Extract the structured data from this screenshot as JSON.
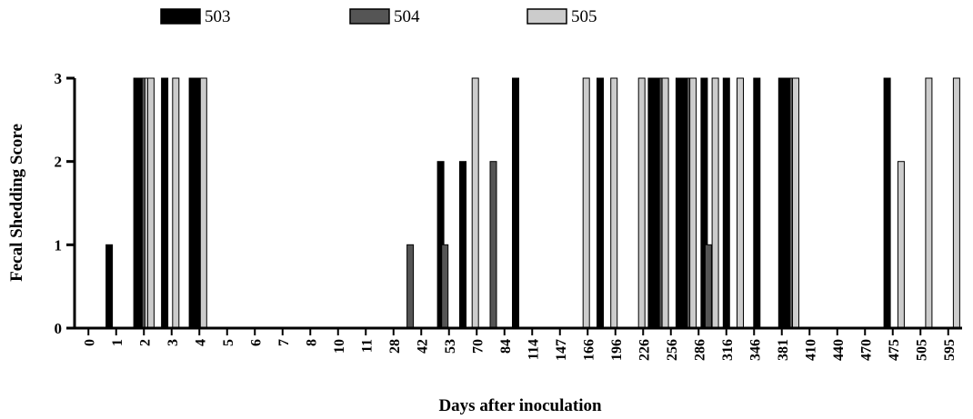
{
  "chart_data": {
    "type": "bar",
    "xlabel": "Days after inoculation",
    "ylabel": "Fecal Shedding Score",
    "ylim": [
      0,
      3
    ],
    "yticks": [
      "0",
      "1",
      "2",
      "3"
    ],
    "categories": [
      "0",
      "1",
      "2",
      "3",
      "4",
      "5",
      "6",
      "7",
      "8",
      "10",
      "11",
      "28",
      "42",
      "53",
      "70",
      "84",
      "114",
      "147",
      "166",
      "196",
      "226",
      "256",
      "286",
      "316",
      "346",
      "381",
      "410",
      "440",
      "470",
      "475",
      "505",
      "595"
    ],
    "legend_position": "top",
    "grid": false,
    "series": [
      {
        "name": "503",
        "color": "#000000",
        "bars": [
          {
            "x": 0.75,
            "v": 1
          },
          {
            "x": 1.75,
            "v": 3
          },
          {
            "x": 1.85,
            "v": 3
          },
          {
            "x": 1.95,
            "v": 3
          },
          {
            "x": 2.75,
            "v": 3
          },
          {
            "x": 3.75,
            "v": 3
          },
          {
            "x": 3.85,
            "v": 3
          },
          {
            "x": 3.95,
            "v": 3
          },
          {
            "x": 4.05,
            "v": 3
          },
          {
            "x": 12.7,
            "v": 2
          },
          {
            "x": 13.5,
            "v": 2
          },
          {
            "x": 15.4,
            "v": 3
          },
          {
            "x": 18.45,
            "v": 3
          },
          {
            "x": 20.3,
            "v": 3
          },
          {
            "x": 20.4,
            "v": 3
          },
          {
            "x": 20.5,
            "v": 3
          },
          {
            "x": 20.6,
            "v": 3
          },
          {
            "x": 21.3,
            "v": 3
          },
          {
            "x": 21.4,
            "v": 3
          },
          {
            "x": 21.5,
            "v": 3
          },
          {
            "x": 21.6,
            "v": 3
          },
          {
            "x": 22.2,
            "v": 3
          },
          {
            "x": 23.0,
            "v": 3
          },
          {
            "x": 24.1,
            "v": 3
          },
          {
            "x": 25.0,
            "v": 3
          },
          {
            "x": 25.1,
            "v": 3
          },
          {
            "x": 25.2,
            "v": 3
          },
          {
            "x": 25.3,
            "v": 3
          },
          {
            "x": 28.8,
            "v": 3
          }
        ]
      },
      {
        "name": "504",
        "color": "#555555",
        "bars": [
          {
            "x": 2.05,
            "v": 3
          },
          {
            "x": 11.6,
            "v": 1
          },
          {
            "x": 12.85,
            "v": 1
          },
          {
            "x": 14.6,
            "v": 2
          },
          {
            "x": 20.7,
            "v": 3
          },
          {
            "x": 21.7,
            "v": 3
          },
          {
            "x": 22.35,
            "v": 1
          },
          {
            "x": 25.4,
            "v": 3
          }
        ]
      },
      {
        "name": "505",
        "color": "#cccccc",
        "bars": [
          {
            "x": 2.15,
            "v": 3
          },
          {
            "x": 2.25,
            "v": 3
          },
          {
            "x": 3.15,
            "v": 3
          },
          {
            "x": 4.15,
            "v": 3
          },
          {
            "x": 13.95,
            "v": 3
          },
          {
            "x": 17.95,
            "v": 3
          },
          {
            "x": 18.95,
            "v": 3
          },
          {
            "x": 19.95,
            "v": 3
          },
          {
            "x": 20.8,
            "v": 3
          },
          {
            "x": 21.8,
            "v": 3
          },
          {
            "x": 22.6,
            "v": 3
          },
          {
            "x": 23.5,
            "v": 3
          },
          {
            "x": 25.5,
            "v": 3
          },
          {
            "x": 29.3,
            "v": 2
          },
          {
            "x": 30.3,
            "v": 3
          },
          {
            "x": 31.3,
            "v": 3
          }
        ]
      }
    ]
  }
}
